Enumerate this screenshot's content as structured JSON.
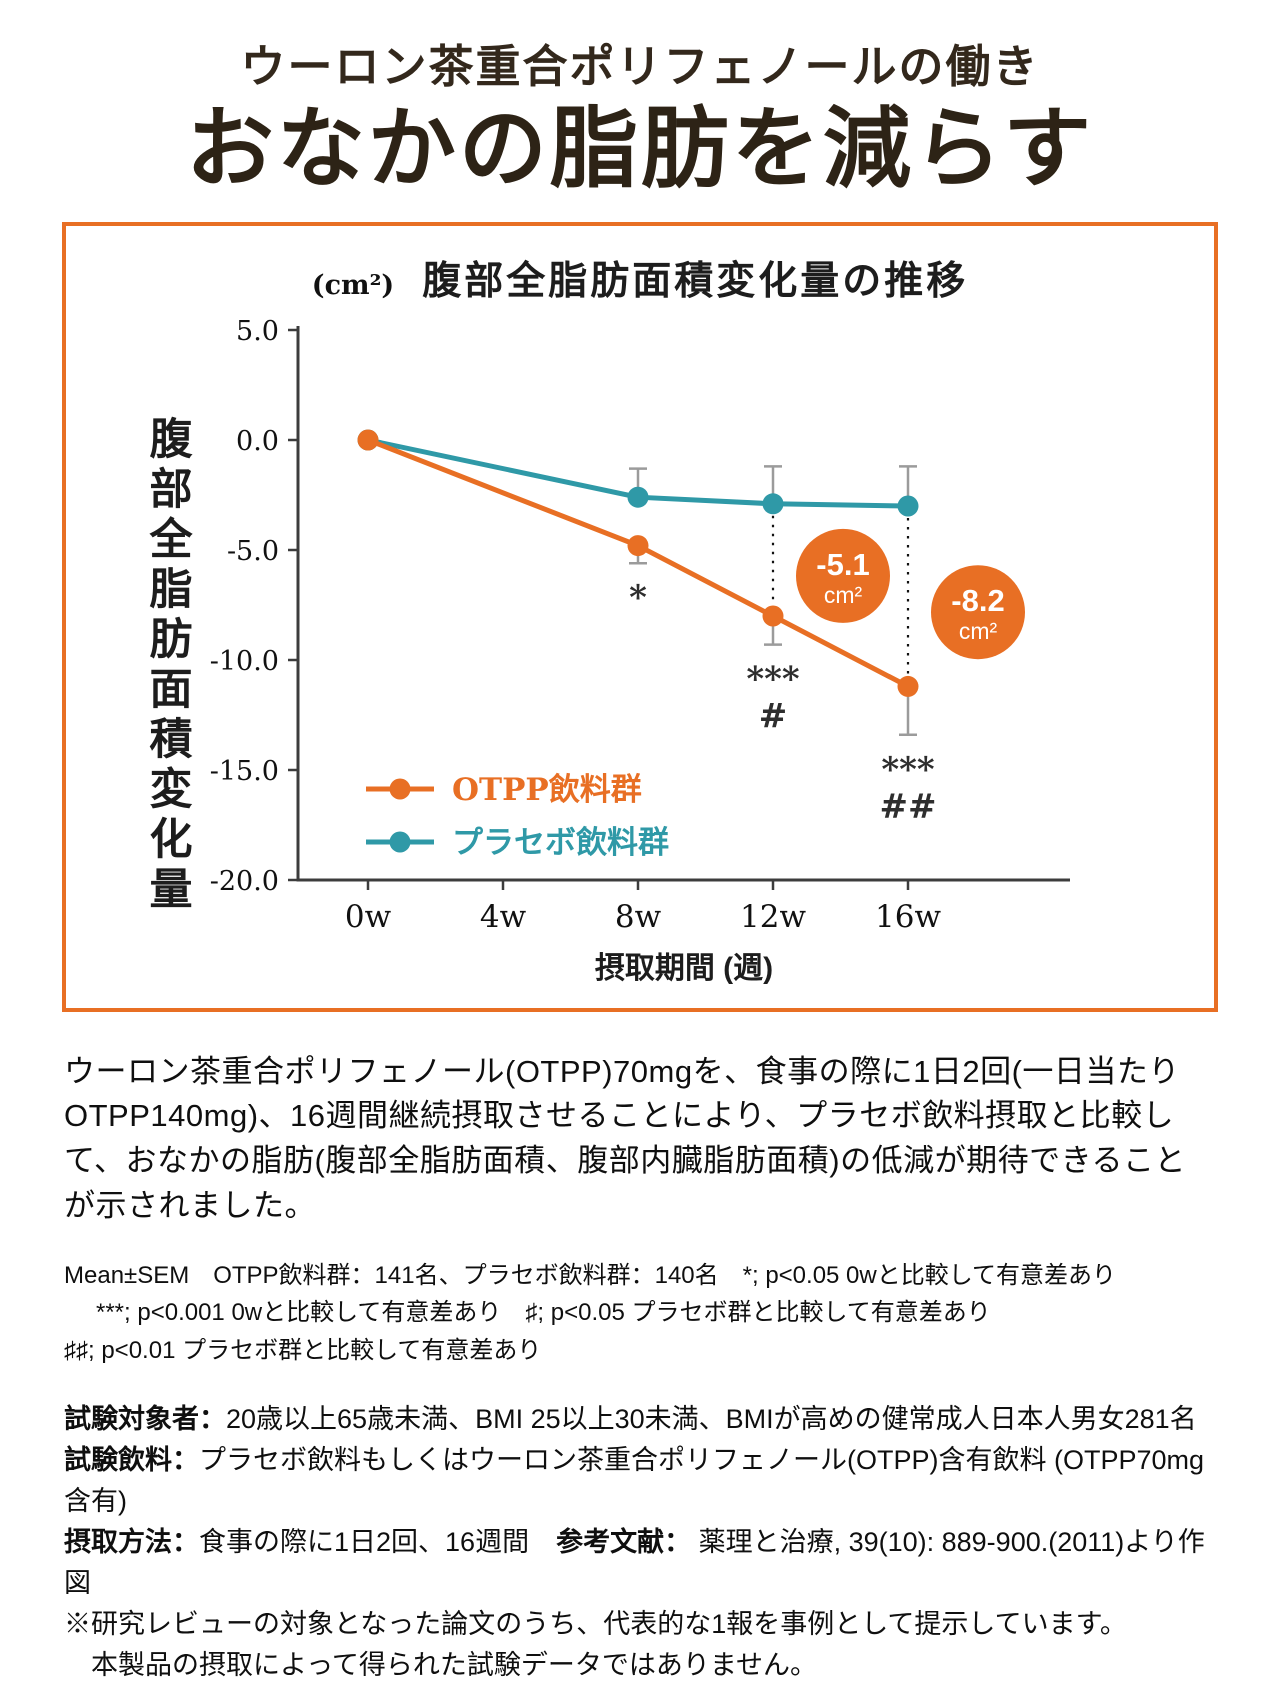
{
  "page": {
    "subtitle": "ウーロン茶重合ポリフェノールの働き",
    "title": "おなかの脂肪を減らす"
  },
  "colors": {
    "accent_orange": "#e86f24",
    "teal": "#2f99a7",
    "title_brown": "#2d2316",
    "errorbar_gray": "#9b9b9b",
    "axis": "#3c3c3c"
  },
  "chart_data": {
    "type": "line",
    "title": "腹部全脂肪面積変化量の推移",
    "unit_label": "(cm²)",
    "ylabel_vertical": "腹部全脂肪面積変化量",
    "xlabel": "摂取期間 (週)",
    "x_ticks": [
      "0w",
      "4w",
      "8w",
      "12w",
      "16w"
    ],
    "x_values": [
      0,
      4,
      8,
      12,
      16
    ],
    "y_ticks": [
      5,
      0,
      -5,
      -10,
      -15,
      -20
    ],
    "ylim": [
      -20,
      5
    ],
    "grid": false,
    "legend_position": "lower-left",
    "series": [
      {
        "name": "OTPP飲料群",
        "color": "#e86f24",
        "x": [
          0,
          8,
          12,
          16
        ],
        "values": [
          0.0,
          -4.8,
          -8.0,
          -11.2
        ],
        "error_up": [
          0,
          0,
          0,
          0
        ],
        "error_down": [
          0,
          0.8,
          1.3,
          2.2
        ]
      },
      {
        "name": "プラセボ飲料群",
        "color": "#2f99a7",
        "x": [
          0,
          8,
          12,
          16
        ],
        "values": [
          0.0,
          -2.6,
          -2.9,
          -3.0
        ],
        "error_up": [
          0,
          1.3,
          1.7,
          1.8
        ],
        "error_down": [
          0,
          0,
          0,
          0
        ]
      }
    ],
    "annotations": [
      {
        "x": 12,
        "label_value": "-5.1",
        "label_unit": "cm²"
      },
      {
        "x": 16,
        "label_value": "-8.2",
        "label_unit": "cm²"
      }
    ],
    "significance": [
      {
        "x": 8,
        "lines": [
          "*"
        ]
      },
      {
        "x": 12,
        "lines": [
          "***",
          "#"
        ]
      },
      {
        "x": 16,
        "lines": [
          "***",
          "##"
        ]
      }
    ]
  },
  "description": "ウーロン茶重合ポリフェノール(OTPP)70mgを、食事の際に1日2回(一日当たりOTPP140mg)、16週間継続摂取させることにより、プラセボ飲料摂取と比較して、おなかの脂肪(腹部全脂肪面積、腹部内臓脂肪面積)の低減が期待できることが示されました。",
  "stats_notes": [
    "Mean±SEM　OTPP飲料群：141名、プラセボ飲料群：140名　*; p<0.05 0wと比較して有意差あり",
    "***; p<0.001 0wと比較して有意差あり　♯; p<0.05 プラセボ群と比較して有意差あり",
    "♯♯; p<0.01 プラセボ群と比較して有意差あり"
  ],
  "trial_info": [
    {
      "segments": [
        {
          "text": "試験対象者：",
          "bold": true
        },
        {
          "text": "20歳以上65歳未満、BMI 25以上30未満、BMIが高めの健常成人日本人男女281名",
          "bold": false
        }
      ]
    },
    {
      "segments": [
        {
          "text": "試験飲料：",
          "bold": true
        },
        {
          "text": "プラセボ飲料もしくはウーロン茶重合ポリフェノール(OTPP)含有飲料 (OTPP70mg含有)",
          "bold": false
        }
      ]
    },
    {
      "segments": [
        {
          "text": "摂取方法：",
          "bold": true
        },
        {
          "text": "食事の際に1日2回、16週間　",
          "bold": false
        },
        {
          "text": "参考文献：",
          "bold": true
        },
        {
          "text": " 薬理と治療, 39(10): 889-900.(2011)より作図",
          "bold": false
        }
      ]
    },
    {
      "segments": [
        {
          "text": "※研究レビューの対象となった論文のうち、代表的な1報を事例として提示しています。",
          "bold": false
        }
      ]
    },
    {
      "segments": [
        {
          "text": "　本製品の摂取によって得られた試験データではありません。",
          "bold": false
        }
      ]
    }
  ]
}
